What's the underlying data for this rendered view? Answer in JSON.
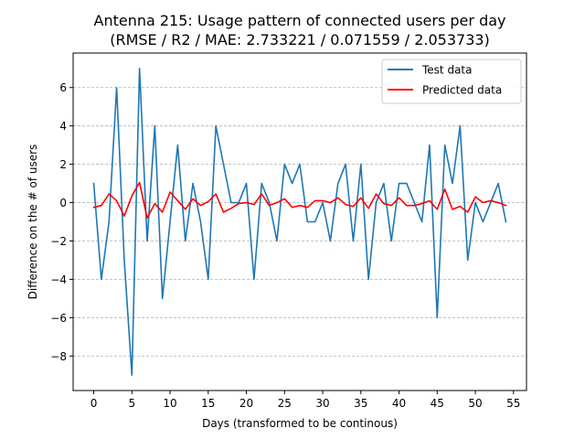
{
  "chart_data": {
    "type": "line",
    "title": "Antenna 215: Usage pattern of connected users per day",
    "subtitle": "(RMSE / R2 / MAE: 2.733221 / 0.071559 / 2.053733)",
    "xlabel": "Days (transformed to be continous)",
    "ylabel": "Difference on the # of users",
    "xlim": [
      -2.7,
      56.7
    ],
    "ylim": [
      -9.8,
      7.8
    ],
    "xticks": [
      0,
      5,
      10,
      15,
      20,
      25,
      30,
      35,
      40,
      45,
      50,
      55
    ],
    "yticks": [
      -8,
      -6,
      -4,
      -2,
      0,
      2,
      4,
      6
    ],
    "grid": "horizontal dashed",
    "legend_position": "top-right",
    "x": [
      0,
      1,
      2,
      3,
      4,
      5,
      6,
      7,
      8,
      9,
      10,
      11,
      12,
      13,
      14,
      15,
      16,
      17,
      18,
      19,
      20,
      21,
      22,
      23,
      24,
      25,
      26,
      27,
      28,
      29,
      30,
      31,
      32,
      33,
      34,
      35,
      36,
      37,
      38,
      39,
      40,
      41,
      42,
      43,
      44,
      45,
      46,
      47,
      48,
      49,
      50,
      51,
      52,
      53,
      54
    ],
    "series": [
      {
        "name": "Test data",
        "color": "#1f77b4",
        "values": [
          1,
          -4,
          -1,
          6,
          -3,
          -9,
          7,
          -2,
          4,
          -5,
          -1,
          3,
          -2,
          1,
          -1,
          -4,
          4,
          2,
          0,
          0,
          1,
          -4,
          1,
          0,
          -2,
          2,
          1,
          2,
          -1,
          -1,
          0,
          -2,
          1,
          2,
          -2,
          2,
          -4,
          0,
          1,
          -2,
          1,
          1,
          0,
          -1,
          3,
          -6,
          3,
          1,
          4,
          -3,
          0,
          -1,
          0,
          1,
          -1
        ]
      },
      {
        "name": "Predicted data",
        "color": "#ff0000",
        "values": [
          -0.25,
          -0.15,
          0.45,
          0.1,
          -0.7,
          0.35,
          1.05,
          -0.8,
          -0.05,
          -0.5,
          0.55,
          0.1,
          -0.35,
          0.2,
          -0.15,
          0.05,
          0.45,
          -0.5,
          -0.3,
          -0.05,
          0.0,
          -0.1,
          0.45,
          -0.15,
          0.0,
          0.2,
          -0.25,
          -0.15,
          -0.25,
          0.1,
          0.1,
          0.0,
          0.25,
          -0.1,
          -0.2,
          0.25,
          -0.3,
          0.45,
          -0.05,
          -0.15,
          0.25,
          -0.15,
          -0.15,
          -0.05,
          0.1,
          -0.35,
          0.7,
          -0.35,
          -0.2,
          -0.5,
          0.3,
          0.0,
          0.1,
          0.0,
          -0.15
        ]
      }
    ]
  }
}
